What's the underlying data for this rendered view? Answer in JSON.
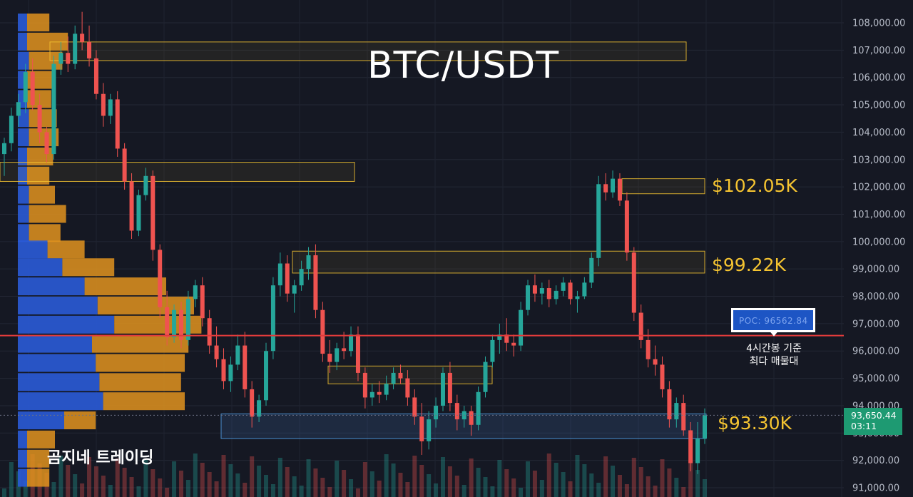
{
  "title": "BTC/USDT",
  "watermark": "곰지네 트레이딩",
  "colors": {
    "background": "#151823",
    "up": "#26a69a",
    "down": "#ef5350",
    "zone_border": "#f5c431",
    "poc_line": "#e23b3b",
    "profile_blue": "#2a5bd7",
    "profile_orange": "#e0931e",
    "label_yellow": "#f5c431"
  },
  "poc": {
    "label": "POC: 96562.84",
    "price": 96562.84,
    "note_line1": "4시간봉 기준",
    "note_line2": "최다 매물대"
  },
  "current_price": {
    "price": "93,650.44",
    "countdown": "03:11",
    "value": 93650.44
  },
  "chart_data": {
    "type": "candlestick",
    "title": "BTC/USDT",
    "y_axis": {
      "ticks": [
        "91,000.00",
        "92,000.00",
        "93,000.00",
        "94,000.00",
        "95,000.00",
        "96,000.00",
        "97,000.00",
        "98,000.00",
        "99,000.00",
        "100,000.00",
        "101,000.00",
        "102,000.00",
        "103,000.00",
        "104,000.00",
        "105,000.00",
        "106,000.00",
        "107,000.00",
        "108,000.00"
      ],
      "range": [
        90600,
        108800
      ]
    },
    "zone_labels": [
      {
        "text": "$102.05K",
        "price": 102050
      },
      {
        "text": "$99.22K",
        "price": 99220
      },
      {
        "text": "$93.30K",
        "price": 93300
      }
    ],
    "zones": [
      {
        "low": 106620,
        "high": 107300,
        "style": "yellow"
      },
      {
        "low": 102200,
        "high": 102900,
        "style": "yellow"
      },
      {
        "low": 101750,
        "high": 102300,
        "style": "yellow"
      },
      {
        "low": 98850,
        "high": 99650,
        "style": "yellow"
      },
      {
        "low": 94800,
        "high": 95450,
        "style": "yellow"
      },
      {
        "low": 92800,
        "high": 93700,
        "style": "blue"
      }
    ],
    "volume_profile": [
      {
        "price": 108000,
        "up": 0.05,
        "down": 0.12
      },
      {
        "price": 107300,
        "up": 0.05,
        "down": 0.22
      },
      {
        "price": 106600,
        "up": 0.06,
        "down": 0.18
      },
      {
        "price": 105900,
        "up": 0.05,
        "down": 0.14
      },
      {
        "price": 105200,
        "up": 0.05,
        "down": 0.13
      },
      {
        "price": 104500,
        "up": 0.06,
        "down": 0.15
      },
      {
        "price": 103800,
        "up": 0.06,
        "down": 0.16
      },
      {
        "price": 103100,
        "up": 0.05,
        "down": 0.14
      },
      {
        "price": 102400,
        "up": 0.05,
        "down": 0.12
      },
      {
        "price": 101700,
        "up": 0.06,
        "down": 0.14
      },
      {
        "price": 101000,
        "up": 0.06,
        "down": 0.2
      },
      {
        "price": 100300,
        "up": 0.06,
        "down": 0.17
      },
      {
        "price": 99700,
        "up": 0.16,
        "down": 0.2
      },
      {
        "price": 99050,
        "up": 0.24,
        "down": 0.28
      },
      {
        "price": 98350,
        "up": 0.36,
        "down": 0.44
      },
      {
        "price": 97650,
        "up": 0.43,
        "down": 0.52
      },
      {
        "price": 96950,
        "up": 0.52,
        "down": 0.47
      },
      {
        "price": 96250,
        "up": 0.4,
        "down": 0.52
      },
      {
        "price": 95550,
        "up": 0.42,
        "down": 0.48
      },
      {
        "price": 94850,
        "up": 0.44,
        "down": 0.44
      },
      {
        "price": 94150,
        "up": 0.46,
        "down": 0.44
      },
      {
        "price": 93450,
        "up": 0.25,
        "down": 0.17
      },
      {
        "price": 92750,
        "up": 0.05,
        "down": 0.15
      },
      {
        "price": 92050,
        "up": 0.05,
        "down": 0.12
      },
      {
        "price": 91350,
        "up": 0.05,
        "down": 0.12
      }
    ],
    "candles": [
      [
        103200,
        103800,
        102400,
        103600
      ],
      [
        103600,
        104900,
        103300,
        104600
      ],
      [
        104600,
        105400,
        104200,
        105100
      ],
      [
        105100,
        106500,
        104700,
        106200
      ],
      [
        106200,
        106700,
        104800,
        105000
      ],
      [
        105000,
        105400,
        103600,
        104000
      ],
      [
        104000,
        104200,
        102900,
        103200
      ],
      [
        103200,
        106800,
        103000,
        106500
      ],
      [
        106500,
        107300,
        106100,
        106900
      ],
      [
        106900,
        107500,
        106200,
        106500
      ],
      [
        106500,
        107900,
        106300,
        107600
      ],
      [
        107600,
        108400,
        107000,
        107300
      ],
      [
        107300,
        107900,
        106400,
        106700
      ],
      [
        106700,
        107000,
        105200,
        105400
      ],
      [
        105400,
        105800,
        104200,
        104600
      ],
      [
        104600,
        105400,
        104300,
        105200
      ],
      [
        105200,
        105500,
        103100,
        103400
      ],
      [
        103400,
        103600,
        101900,
        102200
      ],
      [
        102200,
        102500,
        100100,
        100400
      ],
      [
        100400,
        101900,
        100200,
        101700
      ],
      [
        101700,
        102700,
        101500,
        102400
      ],
      [
        102400,
        102600,
        99300,
        99700
      ],
      [
        99700,
        99900,
        97200,
        97600
      ],
      [
        97600,
        98200,
        96200,
        96500
      ],
      [
        96500,
        97700,
        96300,
        97500
      ],
      [
        97500,
        97800,
        96100,
        96400
      ],
      [
        96400,
        98200,
        96200,
        97900
      ],
      [
        97900,
        98600,
        97600,
        98400
      ],
      [
        98400,
        98700,
        96900,
        97200
      ],
      [
        97200,
        97500,
        95900,
        96200
      ],
      [
        96200,
        96900,
        95400,
        95700
      ],
      [
        95700,
        96100,
        94600,
        94900
      ],
      [
        94900,
        95800,
        94500,
        95500
      ],
      [
        95500,
        96600,
        95300,
        96200
      ],
      [
        96200,
        96700,
        94300,
        94600
      ],
      [
        94600,
        94900,
        93200,
        93600
      ],
      [
        93600,
        94400,
        93400,
        94200
      ],
      [
        94200,
        96300,
        94000,
        96000
      ],
      [
        96000,
        98700,
        95700,
        98400
      ],
      [
        98400,
        99600,
        98000,
        99200
      ],
      [
        99200,
        99500,
        97800,
        98100
      ],
      [
        98100,
        98600,
        97400,
        98400
      ],
      [
        98400,
        99300,
        98200,
        99000
      ],
      [
        99000,
        99800,
        98600,
        99500
      ],
      [
        99500,
        99900,
        97200,
        97500
      ],
      [
        97500,
        97800,
        95600,
        95900
      ],
      [
        95900,
        96400,
        95200,
        95600
      ],
      [
        95600,
        96300,
        95300,
        96100
      ],
      [
        96100,
        96700,
        95700,
        96000
      ],
      [
        96000,
        96900,
        95800,
        96600
      ],
      [
        96600,
        96900,
        94900,
        95200
      ],
      [
        95200,
        95400,
        93900,
        94300
      ],
      [
        94300,
        94800,
        94000,
        94500
      ],
      [
        94500,
        94900,
        94100,
        94400
      ],
      [
        94400,
        95100,
        94200,
        94800
      ],
      [
        94800,
        95400,
        94600,
        95200
      ],
      [
        95200,
        95500,
        94800,
        95000
      ],
      [
        95000,
        95300,
        94000,
        94300
      ],
      [
        94300,
        94600,
        93300,
        93600
      ],
      [
        93600,
        94100,
        92200,
        92700
      ],
      [
        92700,
        93800,
        92400,
        93500
      ],
      [
        93500,
        94300,
        93200,
        94000
      ],
      [
        94000,
        95400,
        93800,
        95200
      ],
      [
        95200,
        95600,
        93800,
        94100
      ],
      [
        94100,
        94400,
        93100,
        93500
      ],
      [
        93500,
        94000,
        93200,
        93800
      ],
      [
        93800,
        94000,
        92900,
        93300
      ],
      [
        93300,
        94700,
        93100,
        94500
      ],
      [
        94500,
        95800,
        94300,
        95600
      ],
      [
        95600,
        96600,
        95400,
        96400
      ],
      [
        96400,
        97000,
        95900,
        96600
      ],
      [
        96600,
        97200,
        96000,
        96300
      ],
      [
        96300,
        96600,
        95800,
        96200
      ],
      [
        96200,
        97800,
        96000,
        97500
      ],
      [
        97500,
        98600,
        97300,
        98400
      ],
      [
        98400,
        98800,
        97800,
        98100
      ],
      [
        98100,
        98500,
        97700,
        98300
      ],
      [
        98300,
        98600,
        97600,
        97900
      ],
      [
        97900,
        98400,
        97700,
        98200
      ],
      [
        98200,
        98700,
        98000,
        98500
      ],
      [
        98500,
        98600,
        97700,
        97900
      ],
      [
        97900,
        98200,
        97400,
        98000
      ],
      [
        98000,
        98700,
        97900,
        98500
      ],
      [
        98500,
        99600,
        98300,
        99400
      ],
      [
        99400,
        102400,
        99100,
        102100
      ],
      [
        102100,
        102500,
        101500,
        101800
      ],
      [
        101800,
        102600,
        101600,
        102300
      ],
      [
        102300,
        102500,
        101300,
        101500
      ],
      [
        101500,
        101800,
        99300,
        99600
      ],
      [
        99600,
        99800,
        97100,
        97400
      ],
      [
        97400,
        97700,
        96100,
        96400
      ],
      [
        96400,
        96800,
        95400,
        95700
      ],
      [
        95700,
        96200,
        95100,
        95500
      ],
      [
        95500,
        95800,
        94300,
        94600
      ],
      [
        94600,
        94900,
        93200,
        93500
      ],
      [
        93500,
        94300,
        93200,
        94100
      ],
      [
        94100,
        94400,
        92900,
        93100
      ],
      [
        93100,
        93400,
        91600,
        91900
      ],
      [
        91900,
        93400,
        91500,
        92800
      ],
      [
        92800,
        93900,
        92600,
        93650
      ]
    ]
  }
}
